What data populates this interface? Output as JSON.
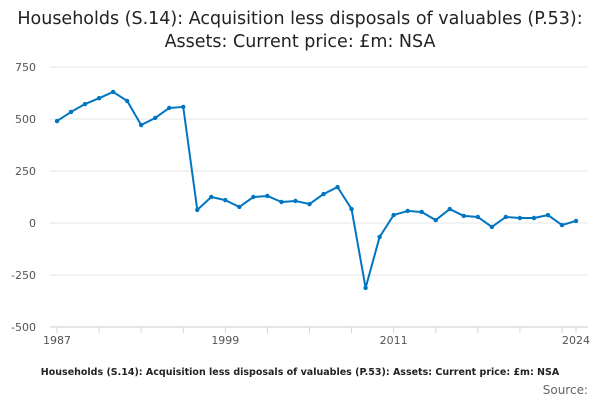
{
  "chart_data": {
    "type": "line",
    "title": "Households (S.14): Acquisition less disposals of valuables (P.53): Assets: Current price: £m: NSA",
    "caption": "Households (S.14): Acquisition less disposals of valuables (P.53): Assets: Current price: £m: NSA",
    "source_label": "Source:",
    "xlabel": "",
    "ylabel": "",
    "ylim": [
      -500,
      750
    ],
    "xlim": [
      1987,
      2024
    ],
    "yticks": [
      750,
      500,
      250,
      0,
      -250,
      -500
    ],
    "xtick_labels": [
      "1987",
      "1999",
      "2011",
      "2024"
    ],
    "grid": true,
    "color": "#0075c2",
    "series": [
      {
        "name": "Households (S.14): Acquisition less disposals of valuables (P.53)",
        "x": [
          1987,
          1988,
          1989,
          1990,
          1991,
          1992,
          1993,
          1994,
          1995,
          1996,
          1997,
          1998,
          1999,
          2000,
          2001,
          2002,
          2003,
          2004,
          2005,
          2006,
          2007,
          2008,
          2009,
          2010,
          2011,
          2012,
          2013,
          2014,
          2015,
          2016,
          2017,
          2018,
          2019,
          2020,
          2021,
          2022,
          2023,
          2024
        ],
        "values": [
          490,
          534,
          572,
          600,
          630,
          587,
          471,
          505,
          553,
          558,
          63,
          125,
          110,
          77,
          125,
          130,
          101,
          106,
          91,
          139,
          173,
          67,
          -312,
          -67,
          38,
          58,
          53,
          14,
          67,
          34,
          29,
          -19,
          29,
          24,
          24,
          38,
          -10,
          10
        ]
      }
    ]
  }
}
